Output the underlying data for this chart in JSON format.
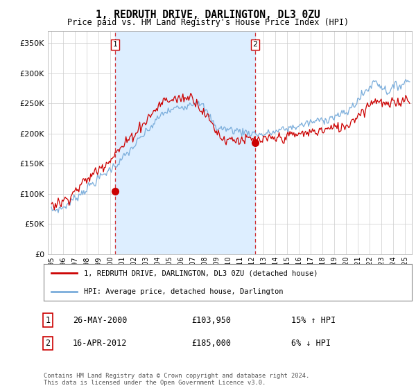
{
  "title": "1, REDRUTH DRIVE, DARLINGTON, DL3 0ZU",
  "subtitle": "Price paid vs. HM Land Registry's House Price Index (HPI)",
  "legend_line1": "1, REDRUTH DRIVE, DARLINGTON, DL3 0ZU (detached house)",
  "legend_line2": "HPI: Average price, detached house, Darlington",
  "label1_num": "1",
  "label1_date": "26-MAY-2000",
  "label1_price": "£103,950",
  "label1_hpi": "15% ↑ HPI",
  "label2_num": "2",
  "label2_date": "16-APR-2012",
  "label2_price": "£185,000",
  "label2_hpi": "6% ↓ HPI",
  "footer": "Contains HM Land Registry data © Crown copyright and database right 2024.\nThis data is licensed under the Open Government Licence v3.0.",
  "red_color": "#cc0000",
  "blue_color": "#7aaddb",
  "fill_color": "#ddeeff",
  "background_color": "#ffffff",
  "grid_color": "#cccccc",
  "ylim": [
    0,
    370000
  ],
  "yticks": [
    0,
    50000,
    100000,
    150000,
    200000,
    250000,
    300000,
    350000
  ],
  "sale1_x": 2000.42,
  "sale1_y": 103950,
  "sale2_x": 2012.29,
  "sale2_y": 185000,
  "vline1_x": 2000.42,
  "vline2_x": 2012.29,
  "xlim_left": 1994.7,
  "xlim_right": 2025.6
}
